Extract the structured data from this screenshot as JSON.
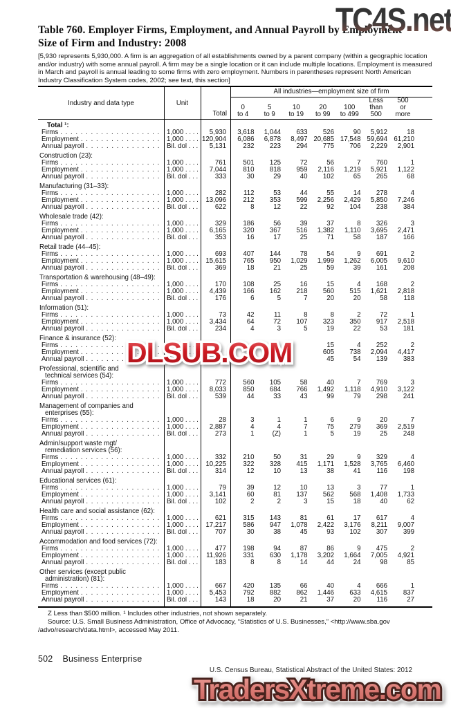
{
  "watermarks": {
    "top_right": "TC4S.net",
    "middle": "DLSUB.COM",
    "bottom": "TradersXtreme.com"
  },
  "title": {
    "line1": "Table 760. Employer Firms, Employment, and Annual Payroll by Employment",
    "line2": "Size of Firm and Industry: 2008"
  },
  "note": "[5,930 represents 5,930,000. A firm is an aggregation of all establishments owned by a parent company (within a geographic location and/or industry) with some annual payroll. A firm may be a single location or it can include multiple locations. Employment is measured in March and payroll is annual leading to some firms with zero employment. Numbers in parentheses represent North American Industry Classification System codes, 2002; see text, this section]",
  "table": {
    "col_industry": "Industry and data type",
    "col_unit": "Unit",
    "total_label": "Total",
    "spanner": "All industries—employment size of firm",
    "columns": [
      "0\nto 4",
      "5\nto 9",
      "10\nto 19",
      "20\nto 99",
      "100\nto 499",
      "Less\nthan\n500",
      "500\nor\nmore"
    ],
    "sections": [
      {
        "heading_lines": [
          "Total ¹:"
        ],
        "bold": true,
        "extra_indent": true,
        "rows": [
          {
            "label": "Firms",
            "unit": "1,000 . . . .",
            "values": [
              "5,930",
              "3,618",
              "1,044",
              "633",
              "526",
              "90",
              "5,912",
              "18"
            ]
          },
          {
            "label": "Employment",
            "unit": "1,000 . . . .",
            "values": [
              "120,904",
              "6,086",
              "6,878",
              "8,497",
              "20,685",
              "17,548",
              "59,694",
              "61,210"
            ]
          },
          {
            "label": "Annual payroll",
            "unit": "Bil. dol . . .",
            "values": [
              "5,131",
              "232",
              "223",
              "294",
              "775",
              "706",
              "2,229",
              "2,901"
            ]
          }
        ]
      },
      {
        "heading_lines": [
          "Construction (23):"
        ],
        "rows": [
          {
            "label": "Firms",
            "unit": "1,000 . . . .",
            "values": [
              "761",
              "501",
              "125",
              "72",
              "56",
              "7",
              "760",
              "1"
            ]
          },
          {
            "label": "Employment",
            "unit": "1,000 . . . .",
            "values": [
              "7,044",
              "810",
              "818",
              "959",
              "2,116",
              "1,219",
              "5,921",
              "1,122"
            ]
          },
          {
            "label": "Annual payroll",
            "unit": "Bil. dol . . .",
            "values": [
              "333",
              "30",
              "29",
              "40",
              "102",
              "65",
              "265",
              "68"
            ]
          }
        ]
      },
      {
        "heading_lines": [
          "Manufacturing (31–33):"
        ],
        "rows": [
          {
            "label": "Firms",
            "unit": "1,000 . . . .",
            "values": [
              "282",
              "112",
              "53",
              "44",
              "55",
              "14",
              "278",
              "4"
            ]
          },
          {
            "label": "Employment",
            "unit": "1,000 . . . .",
            "values": [
              "13,096",
              "212",
              "353",
              "599",
              "2,256",
              "2,429",
              "5,850",
              "7,246"
            ]
          },
          {
            "label": "Annual payroll",
            "unit": "Bil. dol . . .",
            "values": [
              "622",
              "8",
              "12",
              "22",
              "92",
              "104",
              "238",
              "384"
            ]
          }
        ]
      },
      {
        "heading_lines": [
          "Wholesale trade (42):"
        ],
        "rows": [
          {
            "label": "Firms",
            "unit": "1,000 . . . .",
            "values": [
              "329",
              "186",
              "56",
              "39",
              "37",
              "8",
              "326",
              "3"
            ]
          },
          {
            "label": "Employment",
            "unit": "1,000 . . . .",
            "values": [
              "6,165",
              "320",
              "367",
              "516",
              "1,382",
              "1,110",
              "3,695",
              "2,471"
            ]
          },
          {
            "label": "Annual payroll",
            "unit": "Bil. dol . . .",
            "values": [
              "353",
              "16",
              "17",
              "25",
              "71",
              "58",
              "187",
              "166"
            ]
          }
        ]
      },
      {
        "heading_lines": [
          "Retail trade (44–45):"
        ],
        "rows": [
          {
            "label": "Firms",
            "unit": "1,000 . . . .",
            "values": [
              "693",
              "407",
              "144",
              "78",
              "54",
              "9",
              "691",
              "2"
            ]
          },
          {
            "label": "Employment",
            "unit": "1,000 . . . .",
            "values": [
              "15,615",
              "765",
              "950",
              "1,029",
              "1,999",
              "1,262",
              "6,005",
              "9,610"
            ]
          },
          {
            "label": "Annual payroll",
            "unit": "Bil. dol . . .",
            "values": [
              "369",
              "18",
              "21",
              "25",
              "59",
              "39",
              "161",
              "208"
            ]
          }
        ]
      },
      {
        "heading_lines": [
          "Transportation & warehousing (48–49):"
        ],
        "rows": [
          {
            "label": "Firms",
            "unit": "1,000 . . . .",
            "values": [
              "170",
              "108",
              "25",
              "16",
              "15",
              "4",
              "168",
              "2"
            ]
          },
          {
            "label": "Employment",
            "unit": "1,000 . . . .",
            "values": [
              "4,439",
              "166",
              "162",
              "218",
              "560",
              "515",
              "1,621",
              "2,818"
            ]
          },
          {
            "label": "Annual payroll",
            "unit": "Bil. dol . . .",
            "values": [
              "176",
              "6",
              "5",
              "7",
              "20",
              "20",
              "58",
              "118"
            ]
          }
        ]
      },
      {
        "heading_lines": [
          "Information (51):"
        ],
        "rows": [
          {
            "label": "Firms",
            "unit": "1,000 . . . .",
            "values": [
              "73",
              "42",
              "11",
              "8",
              "8",
              "2",
              "72",
              "1"
            ]
          },
          {
            "label": "Employment",
            "unit": "1,000 . . . .",
            "values": [
              "3,434",
              "64",
              "72",
              "107",
              "323",
              "350",
              "917",
              "2,518"
            ]
          },
          {
            "label": "Annual payroll",
            "unit": "Bil. dol . . .",
            "values": [
              "234",
              "4",
              "3",
              "5",
              "19",
              "22",
              "53",
              "181"
            ]
          }
        ]
      },
      {
        "heading_lines": [
          "Finance & insurance (52):"
        ],
        "rows": [
          {
            "label": "Firms",
            "unit": "1,000 . . . .",
            "values": [
              "",
              "",
              "",
              "",
              "15",
              "4",
              "252",
              "2"
            ]
          },
          {
            "label": "Employment",
            "unit": "1,000 . . . .",
            "values": [
              "",
              "",
              "",
              "",
              "605",
              "738",
              "2,094",
              "4,417"
            ]
          },
          {
            "label": "Annual payroll",
            "unit": "Bil. dol . . .",
            "values": [
              "",
              "",
              "",
              "",
              "45",
              "54",
              "139",
              "383"
            ]
          }
        ]
      },
      {
        "heading_lines": [
          "Professional, scientific and",
          "technical services (54):"
        ],
        "rows": [
          {
            "label": "Firms",
            "unit": "1,000 . . . .",
            "values": [
              "772",
              "560",
              "105",
              "58",
              "40",
              "7",
              "769",
              "3"
            ]
          },
          {
            "label": "Employment",
            "unit": "1,000 . . . .",
            "values": [
              "8,033",
              "850",
              "684",
              "766",
              "1,492",
              "1,118",
              "4,910",
              "3,122"
            ]
          },
          {
            "label": "Annual payroll",
            "unit": "Bil. dol . . .",
            "values": [
              "539",
              "44",
              "33",
              "43",
              "99",
              "79",
              "298",
              "241"
            ]
          }
        ]
      },
      {
        "heading_lines": [
          "Management of companies and",
          "enterprises (55):"
        ],
        "rows": [
          {
            "label": "Firms",
            "unit": "1,000 . . . .",
            "values": [
              "28",
              "3",
              "1",
              "1",
              "6",
              "9",
              "20",
              "7"
            ]
          },
          {
            "label": "Employment",
            "unit": "1,000 . . . .",
            "values": [
              "2,887",
              "4",
              "4",
              "7",
              "75",
              "279",
              "369",
              "2,519"
            ]
          },
          {
            "label": "Annual payroll",
            "unit": "Bil. dol . . .",
            "values": [
              "273",
              "1",
              "(Z)",
              "1",
              "5",
              "19",
              "25",
              "248"
            ]
          }
        ]
      },
      {
        "heading_lines": [
          "Admin/support waste mgt/",
          "remediation services (56):"
        ],
        "rows": [
          {
            "label": "Firms",
            "unit": "1,000 . . . .",
            "values": [
              "332",
              "210",
              "50",
              "31",
              "29",
              "9",
              "329",
              "4"
            ]
          },
          {
            "label": "Employment",
            "unit": "1,000 . . . .",
            "values": [
              "10,225",
              "322",
              "328",
              "415",
              "1,171",
              "1,528",
              "3,765",
              "6,460"
            ]
          },
          {
            "label": "Annual payroll",
            "unit": "Bil. dol . . .",
            "values": [
              "314",
              "12",
              "10",
              "13",
              "38",
              "41",
              "116",
              "198"
            ]
          }
        ]
      },
      {
        "heading_lines": [
          "Educational services (61):"
        ],
        "rows": [
          {
            "label": "Firms",
            "unit": "1,000 . . . .",
            "values": [
              "79",
              "39",
              "12",
              "10",
              "13",
              "3",
              "77",
              "1"
            ]
          },
          {
            "label": "Employment",
            "unit": "1,000 . . . .",
            "values": [
              "3,141",
              "60",
              "81",
              "137",
              "562",
              "568",
              "1,408",
              "1,733"
            ]
          },
          {
            "label": "Annual payroll",
            "unit": "Bil. dol . . .",
            "values": [
              "102",
              "2",
              "2",
              "3",
              "15",
              "18",
              "40",
              "62"
            ]
          }
        ]
      },
      {
        "heading_lines": [
          "Health care and social assistance (62):"
        ],
        "rows": [
          {
            "label": "Firms",
            "unit": "1,000 . . . .",
            "values": [
              "621",
              "315",
              "143",
              "81",
              "61",
              "17",
              "617",
              "4"
            ]
          },
          {
            "label": "Employment",
            "unit": "1,000 . . . .",
            "values": [
              "17,217",
              "586",
              "947",
              "1,078",
              "2,422",
              "3,176",
              "8,211",
              "9,007"
            ]
          },
          {
            "label": "Annual payroll",
            "unit": "Bil. dol . . .",
            "values": [
              "707",
              "30",
              "38",
              "45",
              "93",
              "102",
              "307",
              "399"
            ]
          }
        ]
      },
      {
        "heading_lines": [
          "Accommodation and food services (72):"
        ],
        "rows": [
          {
            "label": "Firms",
            "unit": "1,000 . . . .",
            "values": [
              "477",
              "198",
              "94",
              "87",
              "86",
              "9",
              "475",
              "2"
            ]
          },
          {
            "label": "Employment",
            "unit": "1,000 . . . .",
            "values": [
              "11,926",
              "331",
              "630",
              "1,178",
              "3,202",
              "1,664",
              "7,005",
              "4,921"
            ]
          },
          {
            "label": "Annual payroll",
            "unit": "Bil. dol . . .",
            "values": [
              "183",
              "8",
              "8",
              "14",
              "44",
              "24",
              "98",
              "85"
            ]
          }
        ]
      },
      {
        "heading_lines": [
          "Other services (except public",
          "administration) (81):"
        ],
        "rows": [
          {
            "label": "Firms",
            "unit": "1,000 . . . .",
            "values": [
              "667",
              "420",
              "135",
              "66",
              "40",
              "4",
              "666",
              "1"
            ]
          },
          {
            "label": "Employment",
            "unit": "1,000 . . . .",
            "values": [
              "5,453",
              "792",
              "882",
              "862",
              "1,446",
              "633",
              "4,615",
              "837"
            ]
          },
          {
            "label": "Annual payroll",
            "unit": "Bil. dol . . .",
            "values": [
              "143",
              "18",
              "20",
              "21",
              "37",
              "20",
              "116",
              "27"
            ]
          }
        ]
      }
    ]
  },
  "footnotes": {
    "line1": "Z Less than $500 million. ¹ Includes other industries, not shown separately.",
    "line2": "Source: U.S. Small Business Administration, Office of Advocacy, “Statistics of U.S. Businesses,” <http://www.sba.gov",
    "line3": "/advo/research/data.html>, accessed May 2011."
  },
  "footer": {
    "page_number": "502",
    "section": "Business Enterprise",
    "census_line": "U.S. Census Bureau, Statistical Abstract of the United States: 2012"
  }
}
